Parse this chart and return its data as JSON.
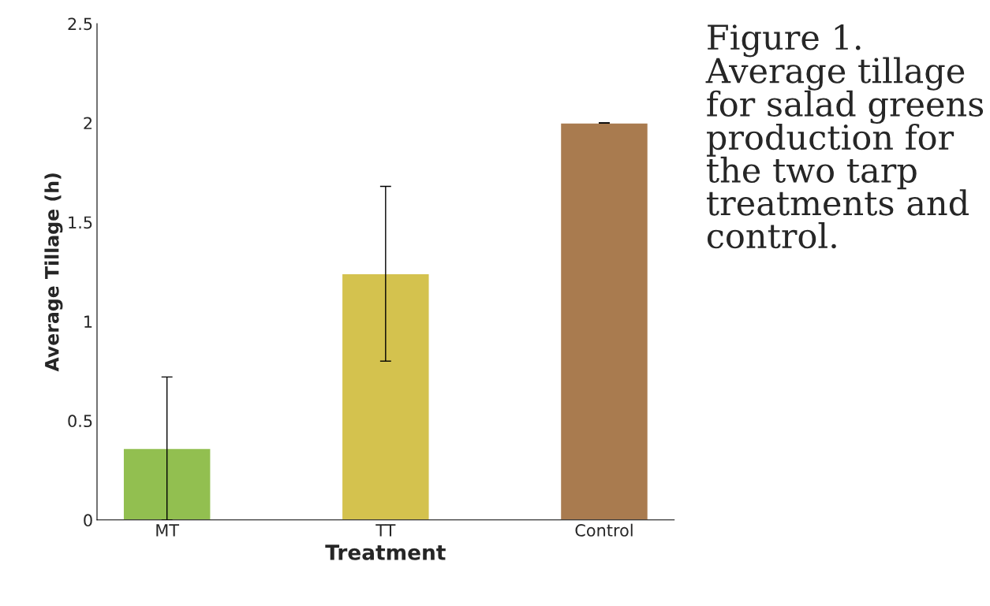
{
  "chart_data": {
    "type": "bar",
    "categories": [
      "MT",
      "TT",
      "Control"
    ],
    "values": [
      0.36,
      1.24,
      2.0
    ],
    "errors": [
      0.36,
      0.44,
      0
    ],
    "colors": [
      "#92bf50",
      "#d4c24e",
      "#a97b4f"
    ],
    "xlabel": "Treatment",
    "ylabel": "Average Tillage (h)",
    "ylim": [
      0,
      2.5
    ],
    "yticks": [
      0,
      0.5,
      1,
      1.5,
      2,
      2.5
    ],
    "grid": false,
    "legend": false,
    "annotations": [
      "Figure 1. Average tillage for salad greens production for the two tarp treatments and control."
    ]
  }
}
